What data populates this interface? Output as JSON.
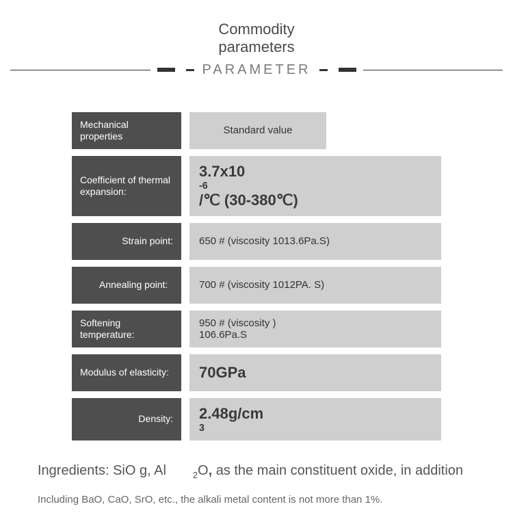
{
  "header": {
    "title": "Commodity parameters",
    "subtitle": "PARAMETER"
  },
  "rows": [
    {
      "label": "Mechanical properties",
      "value": "Standard value",
      "label_align": "left",
      "value_variant": "center"
    },
    {
      "label": "Coefficient of thermal expansion:",
      "value_html": "3.7x10<span class='sup'>-6</span>/℃ (30-380℃)",
      "label_align": "left",
      "value_variant": "big"
    },
    {
      "label": "Strain point:",
      "value": "650 # (viscosity 1013.6Pa.S)",
      "label_align": "right",
      "value_variant": "plain"
    },
    {
      "label": "Annealing point:",
      "value": "700 # (viscosity 1012PA. S)",
      "label_align": "left-indent",
      "value_variant": "plain"
    },
    {
      "label": "Softening temperature:",
      "value": "950 # (viscosity                      )\n106.6Pa.S",
      "label_align": "left",
      "value_variant": "plain"
    },
    {
      "label": "Modulus of elasticity:",
      "value": "70GPa",
      "label_align": "left",
      "value_variant": "big"
    },
    {
      "label": "Density:",
      "value_html": "2.48g/cm<span class='sup'>3</span>",
      "label_align": "right",
      "value_variant": "big"
    }
  ],
  "ingredients": {
    "line1_html": "Ingredients: SiO g, Al&nbsp;&nbsp;&nbsp;&nbsp;&nbsp;&nbsp;&nbsp;<span class='sub'>2</span>O<span style='font-weight:600'>,</span> as the main constituent oxide, in addition",
    "line2": "Including BaO, CaO, SrO, etc., the alkali metal content is not more than 1%."
  },
  "colors": {
    "label_bg": "#4e4e4e",
    "value_bg": "#cfcfcf",
    "page_bg": "#ffffff",
    "text_dark": "#333333",
    "text_mid": "#555555"
  }
}
